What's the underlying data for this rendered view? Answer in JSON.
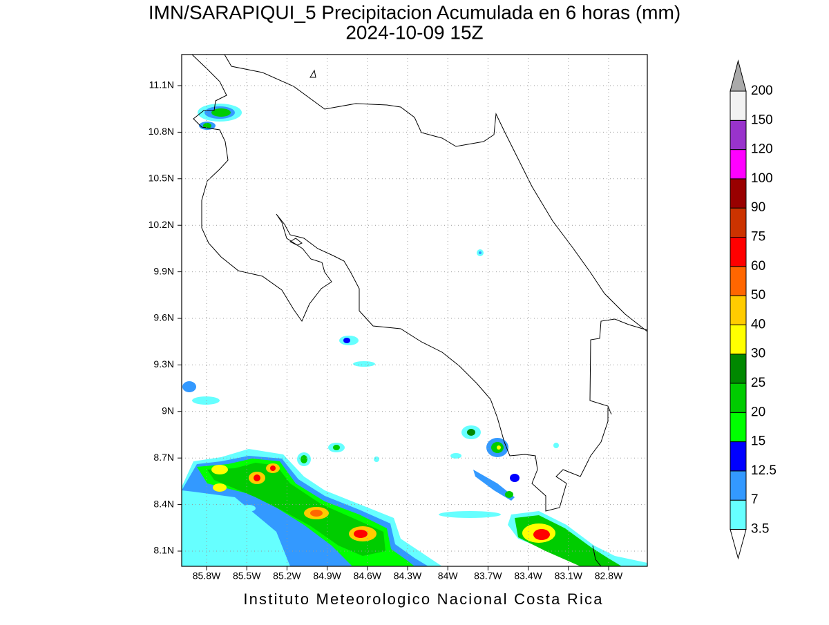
{
  "header": {
    "title": "IMN/SARAPIQUI_5 Precipitacion Acumulada en 6 horas (mm)",
    "subtitle": "2024-10-09 15Z"
  },
  "map": {
    "lat_labels": [
      "11.1N",
      "10.8N",
      "10.5N",
      "10.2N",
      "9.9N",
      "9.6N",
      "9.3N",
      "9N",
      "8.7N",
      "8.4N",
      "8.1N"
    ],
    "lon_labels": [
      "85.8W",
      "85.5W",
      "85.2W",
      "84.9W",
      "84.6W",
      "84.3W",
      "84W",
      "83.7W",
      "83.4W",
      "83.1W",
      "82.8W"
    ]
  },
  "legend": {
    "levels": [
      3.5,
      7,
      12.5,
      15,
      20,
      25,
      30,
      40,
      50,
      60,
      75,
      90,
      100,
      120,
      150,
      200
    ],
    "colors": [
      "#66ffff",
      "#3399ff",
      "#0000ff",
      "#00ff00",
      "#00cc00",
      "#008800",
      "#ffff00",
      "#ffcc00",
      "#ff6600",
      "#ff0000",
      "#cc3300",
      "#990000",
      "#ff00ff",
      "#9933cc",
      "#f2f2f2"
    ],
    "over_color": "#aaaaaa",
    "under_color": "#ffffff"
  },
  "footer": "Instituto Meteorologico Nacional Costa Rica"
}
